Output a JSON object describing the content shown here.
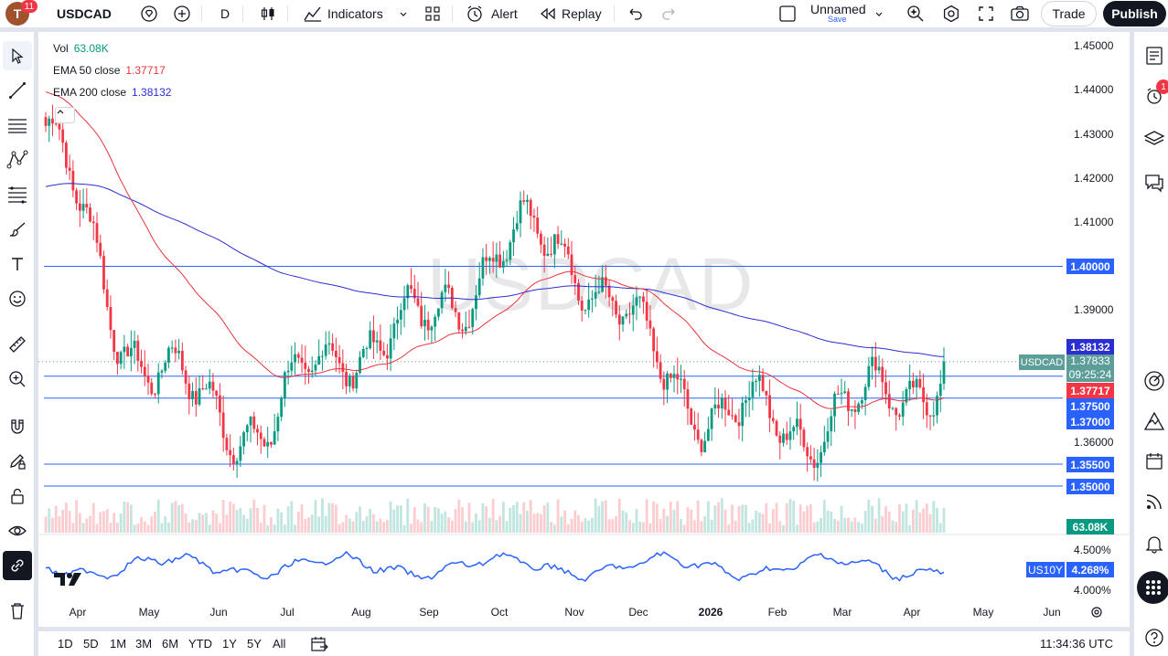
{
  "topbar": {
    "avatar_letter": "T",
    "avatar_badge": "11",
    "symbol": "USDCAD",
    "interval": "D",
    "indicators_label": "Indicators",
    "alert_label": "Alert",
    "replay_label": "Replay",
    "layout_name": "Unnamed",
    "save_hint": "Save",
    "trade_label": "Trade",
    "publish_label": "Publish"
  },
  "legend": {
    "vol_label": "Vol",
    "vol_value": "63.08K",
    "ema50_label": "EMA 50 close",
    "ema50_value": "1.37717",
    "ema200_label": "EMA 200 close",
    "ema200_value": "1.38132"
  },
  "colors": {
    "up": "#089981",
    "down": "#f23645",
    "ema50": "#e8343d",
    "ema200": "#2b2ed0",
    "hline": "#2962ff",
    "us10y": "#2962ff"
  },
  "watermark": "USDCAD",
  "price_axis": [
    "1.45000",
    "1.44000",
    "1.43000",
    "1.42000",
    "1.41000",
    "1.39000",
    "1.36000"
  ],
  "price_labels": {
    "l_140000": "1.40000",
    "l_138132": "1.38132",
    "l_137717": "1.37717",
    "l_137500": "1.37500",
    "l_137000": "1.37000",
    "l_135500": "1.35500",
    "l_135000": "1.35000",
    "vol": "63.08K"
  },
  "current": {
    "tag": "USDCAD",
    "price": "1.37833",
    "countdown": "09:25:24"
  },
  "us10y": {
    "tag": "US10Y",
    "value": "4.268%",
    "axis_top": "4.500%",
    "axis_bottom": "4.000%"
  },
  "time_axis": [
    "Apr",
    "May",
    "Jun",
    "Jul",
    "Aug",
    "Sep",
    "Oct",
    "Nov",
    "Dec",
    "2026",
    "Feb",
    "Mar",
    "Apr",
    "May",
    "Jun"
  ],
  "bottom": {
    "ranges": [
      "1D",
      "5D",
      "1M",
      "3M",
      "6M",
      "YTD",
      "1Y",
      "5Y",
      "All"
    ],
    "clock": "11:34:36 UTC"
  },
  "right_toolbar": {
    "alert_badge": "1"
  },
  "chart_data": {
    "type": "candlestick",
    "symbol": "USDCAD",
    "interval": "D",
    "horizontal_lines": [
      1.4,
      1.375,
      1.37,
      1.355,
      1.35
    ],
    "ema50_last": 1.37717,
    "ema200_last": 1.38132,
    "last_price": 1.37833,
    "volume_last": "63.08K",
    "y_range": [
      1.345,
      1.45
    ],
    "monthly_path": [
      {
        "month": "Apr",
        "price": 1.432
      },
      {
        "month": "May",
        "price": 1.386
      },
      {
        "month": "Jun",
        "price": 1.368
      },
      {
        "month": "Jul",
        "price": 1.364
      },
      {
        "month": "Aug",
        "price": 1.383
      },
      {
        "month": "Sep",
        "price": 1.385
      },
      {
        "month": "Oct",
        "price": 1.404
      },
      {
        "month": "Nov",
        "price": 1.405
      },
      {
        "month": "Dec",
        "price": 1.38
      },
      {
        "month": "2026",
        "price": 1.366
      },
      {
        "month": "Feb",
        "price": 1.364
      },
      {
        "month": "Mar",
        "price": 1.368
      },
      {
        "month": "Apr",
        "price": 1.378
      }
    ]
  }
}
